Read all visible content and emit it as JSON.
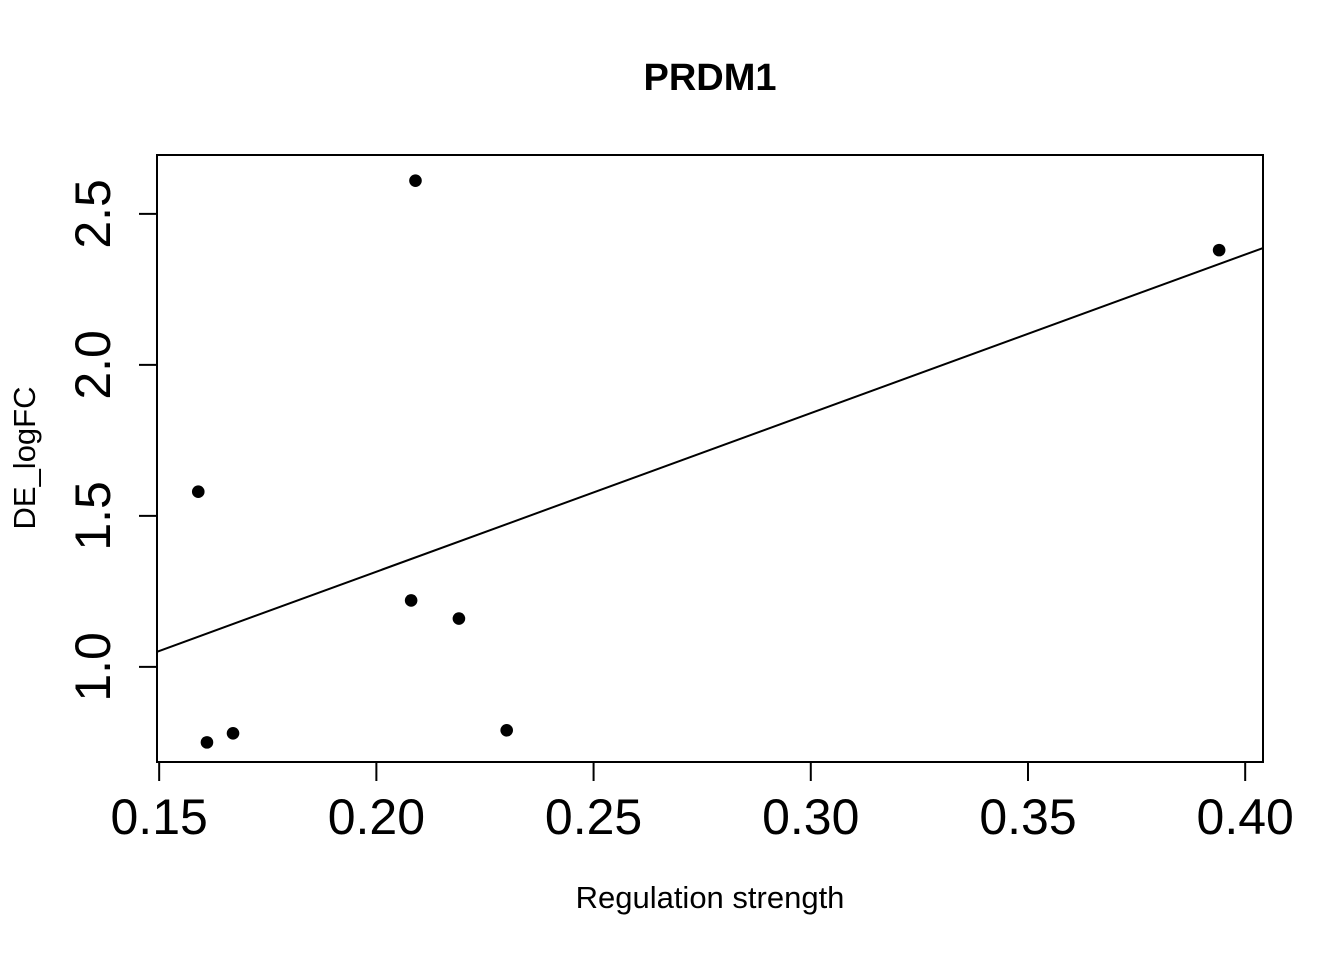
{
  "chart_data": {
    "type": "scatter",
    "title": "PRDM1",
    "xlabel": "Regulation strength",
    "ylabel": "DE_logFC",
    "grid": false,
    "legend": false,
    "background": "#ffffff",
    "point_color": "#000000",
    "line_color": "#000000",
    "axis_color": "#000000",
    "x_axis": {
      "range": [
        0.1495,
        0.4041
      ],
      "ticks": [
        0.15,
        0.2,
        0.25,
        0.3,
        0.35,
        0.4
      ],
      "tick_labels": [
        "0.15",
        "0.20",
        "0.25",
        "0.30",
        "0.35",
        "0.40"
      ]
    },
    "y_axis": {
      "range": [
        0.685,
        2.695
      ],
      "ticks": [
        1.0,
        1.5,
        2.0,
        2.5
      ],
      "tick_labels": [
        "1.0",
        "1.5",
        "2.0",
        "2.5"
      ]
    },
    "points": [
      {
        "x": 0.209,
        "y": 2.61
      },
      {
        "x": 0.394,
        "y": 2.38
      },
      {
        "x": 0.159,
        "y": 1.58
      },
      {
        "x": 0.208,
        "y": 1.22
      },
      {
        "x": 0.219,
        "y": 1.16
      },
      {
        "x": 0.23,
        "y": 0.79
      },
      {
        "x": 0.161,
        "y": 0.75
      },
      {
        "x": 0.167,
        "y": 0.78
      }
    ],
    "regression_line": {
      "x1": 0.1495,
      "y1": 1.05,
      "x2": 0.4041,
      "y2": 2.387
    }
  }
}
